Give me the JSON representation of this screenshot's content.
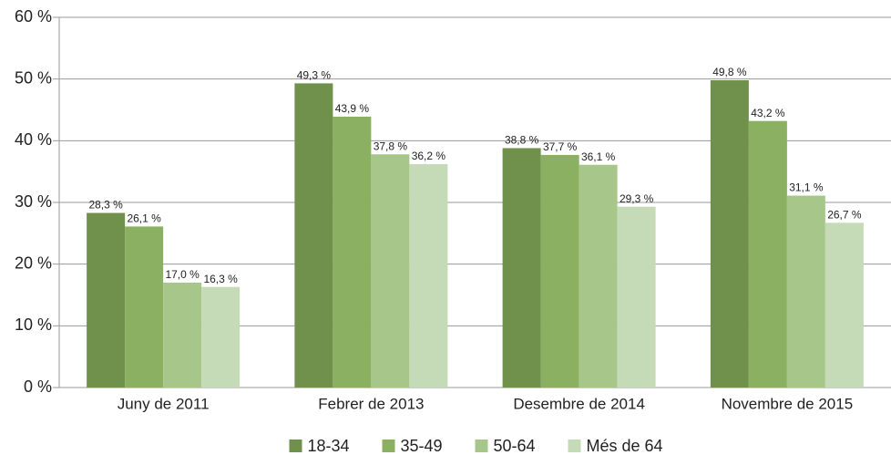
{
  "chart_data": {
    "type": "bar",
    "categories": [
      "Juny de 2011",
      "Febrer de 2013",
      "Desembre de 2014",
      "Novembre de 2015"
    ],
    "series": [
      {
        "name": "18-34",
        "color": "#6f914b",
        "values": [
          28.3,
          49.3,
          38.8,
          49.8
        ],
        "value_labels": [
          "28,3 %",
          "49,3 %",
          "38,8 %",
          "49,8 %"
        ]
      },
      {
        "name": "35-49",
        "color": "#8bb062",
        "values": [
          26.1,
          43.9,
          37.7,
          43.2
        ],
        "value_labels": [
          "26,1 %",
          "43,9 %",
          "37,7 %",
          "43,2 %"
        ]
      },
      {
        "name": "50-64",
        "color": "#a7c78a",
        "values": [
          17.0,
          37.8,
          36.1,
          31.1
        ],
        "value_labels": [
          "17,0 %",
          "37,8 %",
          "36,1 %",
          "31,1 %"
        ]
      },
      {
        "name": "Més de 64",
        "color": "#c5dab6",
        "values": [
          16.3,
          36.2,
          29.3,
          26.7
        ],
        "value_labels": [
          "16,3 %",
          "36,2 %",
          "29,3 %",
          "26,7 %"
        ]
      }
    ],
    "ylim": [
      0,
      60
    ],
    "yticks": [
      {
        "value": 0,
        "label": "0 %"
      },
      {
        "value": 10,
        "label": "10 %"
      },
      {
        "value": 20,
        "label": "20 %"
      },
      {
        "value": 30,
        "label": "30 %"
      },
      {
        "value": 40,
        "label": "40 %"
      },
      {
        "value": 50,
        "label": "50 %"
      },
      {
        "value": 60,
        "label": "60 %"
      }
    ],
    "grid": true,
    "legend": "bottom"
  }
}
